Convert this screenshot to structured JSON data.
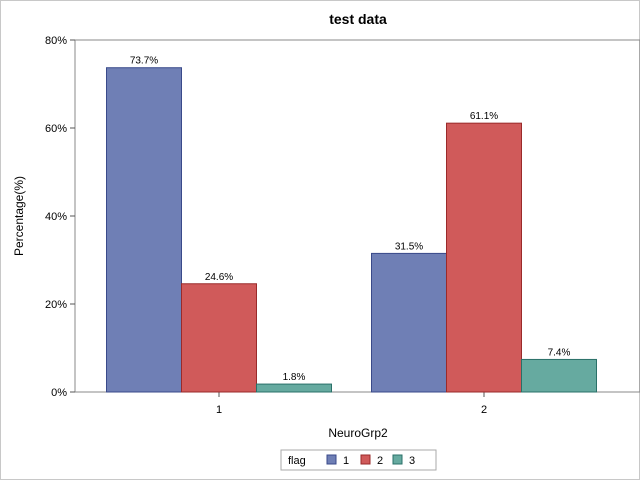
{
  "chart_data": {
    "type": "bar",
    "title": "test data",
    "xlabel": "NeuroGrp2",
    "ylabel": "Percentage(%)",
    "categories": [
      "1",
      "2"
    ],
    "series": [
      {
        "name": "1",
        "values": [
          73.7,
          31.5
        ],
        "labels": [
          "73.7%",
          "31.5%"
        ],
        "color": "#6f7fb5",
        "stroke": "#3a4a8a"
      },
      {
        "name": "2",
        "values": [
          24.6,
          61.1
        ],
        "labels": [
          "24.6%",
          "61.1%"
        ],
        "color": "#d05a5a",
        "stroke": "#9a2a2a"
      },
      {
        "name": "3",
        "values": [
          1.8,
          7.4
        ],
        "labels": [
          "1.8%",
          "7.4%"
        ],
        "color": "#66aaa0",
        "stroke": "#2a7068"
      }
    ],
    "ylim": [
      0,
      80
    ],
    "yticks": [
      0,
      20,
      40,
      60,
      80
    ],
    "ytick_labels": [
      "0%",
      "20%",
      "40%",
      "60%",
      "80%"
    ],
    "grid": false,
    "legend": {
      "title": "flag",
      "position": "bottom-center"
    }
  }
}
